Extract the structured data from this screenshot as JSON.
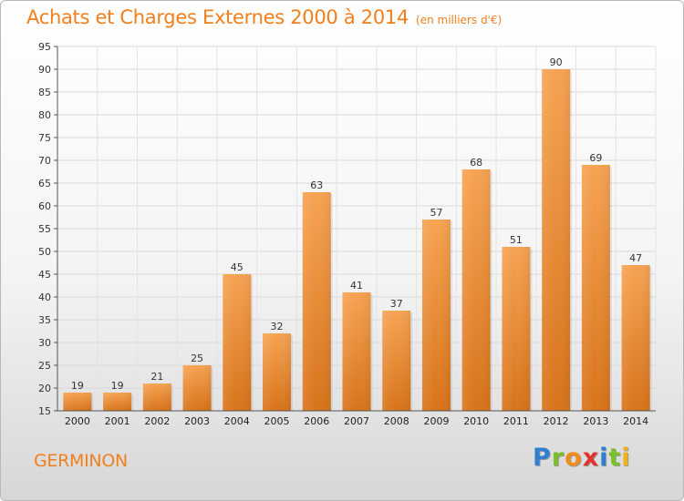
{
  "title": "Achats et Charges Externes 2000 à 2014",
  "subtitle": "(en milliers d'€)",
  "commune": "GERMINON",
  "brand": {
    "letters": [
      {
        "char": "P",
        "color": "#2f7fd0"
      },
      {
        "char": "r",
        "color": "#7bbf2a"
      },
      {
        "char": "o",
        "color": "#f28c1c"
      },
      {
        "char": "x",
        "color": "#e2322b"
      },
      {
        "char": "i",
        "color": "#2f7fd0"
      },
      {
        "char": "t",
        "color": "#7bbf2a"
      },
      {
        "char": "i",
        "color": "#f2b21c"
      }
    ]
  },
  "colors": {
    "accent": "#f07f1c",
    "bar_top": "#f6a352",
    "bar_bottom": "#d8731a",
    "axis": "#555555"
  },
  "chart_data": {
    "type": "bar",
    "title": "Achats et Charges Externes 2000 à 2014",
    "subtitle": "(en milliers d'€)",
    "categories": [
      "2000",
      "2001",
      "2002",
      "2003",
      "2004",
      "2005",
      "2006",
      "2007",
      "2008",
      "2009",
      "2010",
      "2011",
      "2012",
      "2013",
      "2014"
    ],
    "values": [
      19,
      19,
      21,
      25,
      45,
      32,
      63,
      41,
      37,
      57,
      68,
      51,
      90,
      69,
      47
    ],
    "ylim": [
      15,
      95
    ],
    "yticks": [
      15,
      20,
      25,
      30,
      35,
      40,
      45,
      50,
      55,
      60,
      65,
      70,
      75,
      80,
      85,
      90,
      95
    ],
    "grid": true,
    "xlabel": "",
    "ylabel": "",
    "data_labels": true
  }
}
